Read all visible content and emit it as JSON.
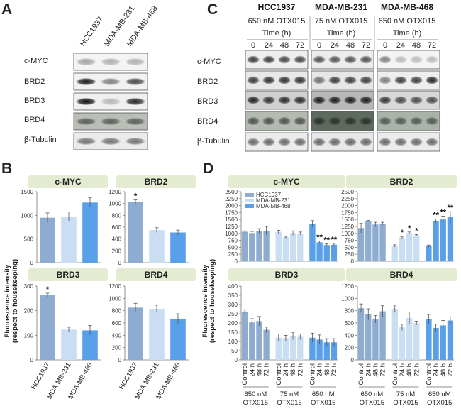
{
  "panel_labels": {
    "a": "A",
    "b": "B",
    "c": "C",
    "d": "D"
  },
  "blots_a": {
    "cell_lines": [
      "HCC1937",
      "MDA-MB-231",
      "MDA-MB-468"
    ],
    "rows": [
      "c-MYC",
      "BRD2",
      "BRD3",
      "BRD4",
      "β-Tubulin"
    ]
  },
  "blots_c": {
    "groups": [
      {
        "cell_line": "HCC1937",
        "treatment": "650 nM OTX015"
      },
      {
        "cell_line": "MDA-MB-231",
        "treatment": "75 nM OTX015"
      },
      {
        "cell_line": "MDA-MB-468",
        "treatment": "650 nM OTX015"
      }
    ],
    "time_label": "Time (h)",
    "times": [
      "0",
      "24",
      "48",
      "72"
    ],
    "rows": [
      "c-MYC",
      "BRD2",
      "BRD3",
      "BRD4",
      "β-Tubulin"
    ]
  },
  "colors": {
    "dark": "#8eabd0",
    "light": "#c9ddf3",
    "blue": "#5aa0e8",
    "header_bg": "#e3ebd0"
  },
  "chart_data": [
    {
      "panel": "B",
      "type": "bar",
      "title": "c-MYC",
      "categories": [
        "HCC1937",
        "MDA-MB-231",
        "MDA-MB-468"
      ],
      "values": [
        950,
        970,
        1270
      ],
      "errors": [
        100,
        100,
        100
      ],
      "ylim": [
        0,
        1500
      ],
      "yticks": [
        0,
        500,
        1000,
        1500
      ],
      "significant": [
        false,
        false,
        false
      ]
    },
    {
      "panel": "B",
      "type": "bar",
      "title": "BRD2",
      "categories": [
        "HCC1937",
        "MDA-MB-231",
        "MDA-MB-468"
      ],
      "values": [
        1020,
        550,
        510
      ],
      "errors": [
        40,
        40,
        40
      ],
      "ylim": [
        0,
        1200
      ],
      "yticks": [
        0,
        200,
        400,
        600,
        800,
        1000,
        1200
      ],
      "significant": [
        true,
        false,
        false
      ]
    },
    {
      "panel": "B",
      "type": "bar",
      "title": "BRD3",
      "categories": [
        "HCC1937",
        "MDA-MB-231",
        "MDA-MB-468"
      ],
      "values": [
        263,
        123,
        120
      ],
      "errors": [
        8,
        10,
        20
      ],
      "ylim": [
        0,
        300
      ],
      "yticks": [
        0,
        100,
        200,
        300
      ],
      "significant": [
        true,
        false,
        false
      ]
    },
    {
      "panel": "B",
      "type": "bar",
      "title": "BRD4",
      "categories": [
        "HCC1937",
        "MDA-MB-231",
        "MDA-MB-468"
      ],
      "values": [
        850,
        830,
        670
      ],
      "errors": [
        70,
        60,
        80
      ],
      "ylim": [
        0,
        1200
      ],
      "yticks": [
        0,
        200,
        400,
        600,
        800,
        1000,
        1200
      ],
      "significant": [
        false,
        false,
        false
      ]
    },
    {
      "panel": "D",
      "type": "bar",
      "title": "c-MYC",
      "legend": [
        "HCC1937",
        "MDA-MB-231",
        "MDA-MB-468"
      ],
      "categories": [
        "Control",
        "24 h",
        "48 h",
        "72 h",
        "Control",
        "24 h",
        "48 h",
        "72 h",
        "Control",
        "24 h",
        "48 h",
        "72 h"
      ],
      "values": [
        1060,
        1010,
        1080,
        1100,
        1050,
        850,
        1010,
        1000,
        1340,
        680,
        580,
        590
      ],
      "errors": [
        30,
        60,
        90,
        150,
        60,
        20,
        80,
        50,
        120,
        50,
        50,
        50
      ],
      "ylim": [
        0,
        2500
      ],
      "yticks": [
        0,
        250,
        500,
        750,
        1000,
        1250,
        1500,
        1750,
        2000,
        2250,
        2500
      ],
      "significant": [
        false,
        false,
        false,
        false,
        false,
        false,
        false,
        false,
        false,
        true,
        true,
        true
      ]
    },
    {
      "panel": "D",
      "type": "bar",
      "title": "BRD2",
      "categories": [
        "Control",
        "24 h",
        "48 h",
        "72 h",
        "Control",
        "24 h",
        "48 h",
        "72 h",
        "Control",
        "24 h",
        "48 h",
        "72 h"
      ],
      "values": [
        1190,
        1450,
        1320,
        1350,
        550,
        850,
        1010,
        930,
        540,
        1450,
        1500,
        1580
      ],
      "errors": [
        170,
        20,
        80,
        50,
        40,
        40,
        40,
        30,
        40,
        70,
        120,
        200
      ],
      "ylim": [
        0,
        2500
      ],
      "yticks": [
        0,
        250,
        500,
        750,
        1000,
        1250,
        1500,
        1750,
        2000,
        2250,
        2500
      ],
      "significant": [
        false,
        false,
        false,
        false,
        false,
        true,
        true,
        true,
        false,
        true,
        true,
        true
      ]
    },
    {
      "panel": "D",
      "type": "bar",
      "title": "BRD3",
      "categories": [
        "Control",
        "24 h",
        "48 h",
        "72 h",
        "Control",
        "24 h",
        "48 h",
        "72 h",
        "Control",
        "24 h",
        "48 h",
        "72 h"
      ],
      "values": [
        262,
        203,
        210,
        163,
        120,
        118,
        130,
        125,
        120,
        110,
        95,
        95
      ],
      "errors": [
        10,
        20,
        25,
        15,
        20,
        15,
        20,
        15,
        25,
        25,
        20,
        20
      ],
      "ylim": [
        0,
        400
      ],
      "yticks": [
        0,
        50,
        100,
        150,
        200,
        250,
        300,
        350,
        400
      ],
      "significant": []
    },
    {
      "panel": "D",
      "type": "bar",
      "title": "BRD4",
      "categories": [
        "Control",
        "24 h",
        "48 h",
        "72 h",
        "Control",
        "24 h",
        "48 h",
        "72 h",
        "Control",
        "24 h",
        "48 h",
        "72 h"
      ],
      "values": [
        840,
        740,
        660,
        790,
        830,
        530,
        680,
        600,
        660,
        520,
        560,
        640
      ],
      "errors": [
        70,
        90,
        60,
        90,
        60,
        50,
        100,
        30,
        80,
        60,
        80,
        60
      ],
      "ylim": [
        0,
        1200
      ],
      "yticks": [
        0,
        200,
        400,
        600,
        800,
        1000,
        1200
      ],
      "significant": []
    }
  ],
  "b_ylabel": [
    "Fluorescence intensity",
    "(respect to housekeeping)"
  ],
  "d_ylabel": [
    "Fluorescence intensity",
    "(respect to housekeeping)"
  ],
  "d_groups": [
    {
      "dose": "650 nM",
      "drug": "OTX015"
    },
    {
      "dose": "75 nM",
      "drug": "OTX015"
    },
    {
      "dose": "650 nM",
      "drug": "OTX015"
    }
  ]
}
